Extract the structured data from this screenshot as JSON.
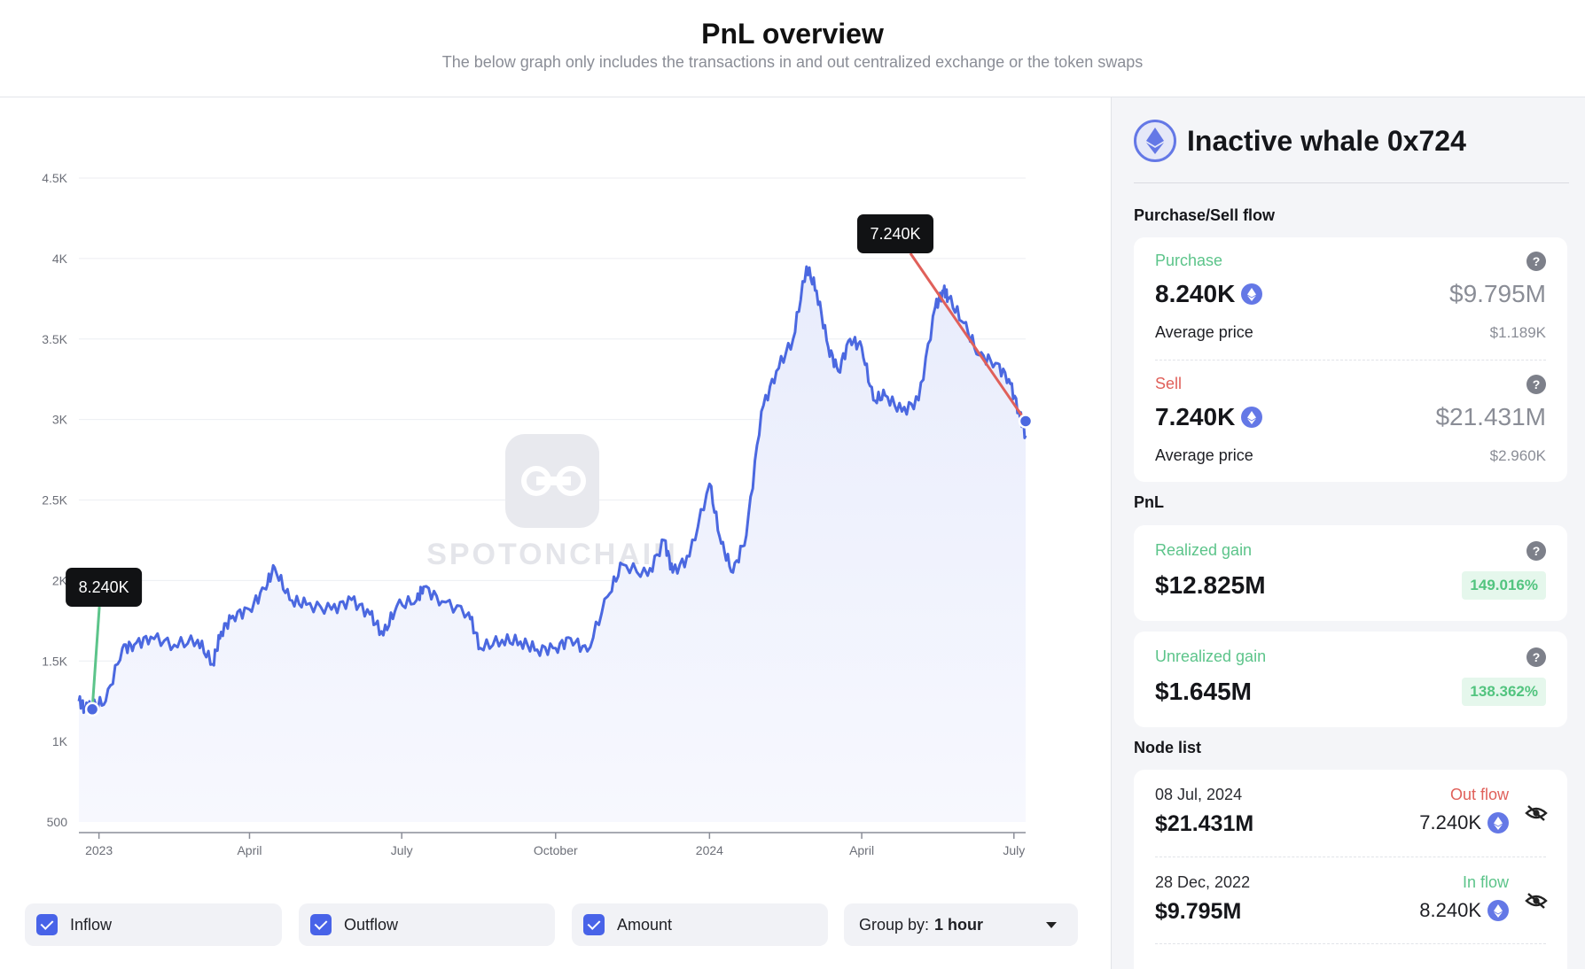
{
  "header": {
    "title": "PnL overview",
    "subtitle": "The below graph only includes the transactions in and out centralized exchange or the token swaps"
  },
  "watermark": "SPOTONCHAIN",
  "chart_data": {
    "type": "area",
    "ylim": [
      500,
      4500
    ],
    "y_ticks": [
      500,
      1000,
      1500,
      2000,
      2500,
      3000,
      3500,
      4000,
      4500
    ],
    "y_tick_labels": [
      "500",
      "1K",
      "1.5K",
      "2K",
      "2.5K",
      "3K",
      "3.5K",
      "4K",
      "4.5K"
    ],
    "x_range": [
      "2022-12-20",
      "2024-07-08"
    ],
    "x_ticks": [
      "2023-01-01",
      "2023-04-01",
      "2023-07-01",
      "2023-10-01",
      "2024-01-01",
      "2024-04-01",
      "2024-07-01"
    ],
    "x_tick_labels": [
      "2023",
      "April",
      "July",
      "October",
      "2024",
      "April",
      "July"
    ],
    "grid": true,
    "series": [
      {
        "color": "#4b68e0",
        "x": [
          "2022-12-20",
          "2022-12-24",
          "2022-12-28",
          "2023-01-05",
          "2023-01-15",
          "2023-01-22",
          "2023-02-01",
          "2023-02-15",
          "2023-03-01",
          "2023-03-10",
          "2023-03-15",
          "2023-03-22",
          "2023-04-01",
          "2023-04-10",
          "2023-04-16",
          "2023-04-25",
          "2023-05-05",
          "2023-05-20",
          "2023-06-01",
          "2023-06-12",
          "2023-06-20",
          "2023-06-28",
          "2023-07-10",
          "2023-07-14",
          "2023-07-25",
          "2023-08-10",
          "2023-08-17",
          "2023-08-30",
          "2023-09-10",
          "2023-09-20",
          "2023-10-01",
          "2023-10-10",
          "2023-10-20",
          "2023-11-01",
          "2023-11-10",
          "2023-11-25",
          "2023-12-05",
          "2023-12-10",
          "2023-12-20",
          "2024-01-01",
          "2024-01-08",
          "2024-01-15",
          "2024-01-23",
          "2024-02-01",
          "2024-02-10",
          "2024-02-20",
          "2024-02-28",
          "2024-03-05",
          "2024-03-12",
          "2024-03-18",
          "2024-03-25",
          "2024-04-01",
          "2024-04-08",
          "2024-04-15",
          "2024-04-25",
          "2024-05-05",
          "2024-05-15",
          "2024-05-20",
          "2024-05-23",
          "2024-06-01",
          "2024-06-10",
          "2024-06-20",
          "2024-06-28",
          "2024-07-04",
          "2024-07-08"
        ],
        "values": [
          1250,
          1200,
          1220,
          1250,
          1580,
          1600,
          1650,
          1600,
          1630,
          1480,
          1680,
          1780,
          1820,
          1950,
          2080,
          1880,
          1850,
          1820,
          1880,
          1790,
          1660,
          1840,
          1880,
          1960,
          1870,
          1800,
          1580,
          1630,
          1620,
          1570,
          1580,
          1640,
          1560,
          1900,
          2100,
          2030,
          2250,
          2050,
          2150,
          2600,
          2230,
          2050,
          2280,
          3050,
          3300,
          3500,
          3950,
          3800,
          3450,
          3300,
          3500,
          3450,
          3120,
          3150,
          3050,
          3120,
          3700,
          3800,
          3750,
          3600,
          3400,
          3350,
          3250,
          3050,
          2900
        ]
      }
    ],
    "annotations": [
      {
        "label": "8.240K",
        "x": "2022-12-28",
        "y": 1200,
        "type": "inflow",
        "color": "#5cc48a"
      },
      {
        "label": "7.240K",
        "x": "2024-07-08",
        "y": 2990,
        "type": "outflow",
        "color": "#e0605a"
      }
    ]
  },
  "controls": {
    "inflow_label": "Inflow",
    "outflow_label": "Outflow",
    "amount_label": "Amount",
    "group_label": "Group by:",
    "group_value": "1 hour"
  },
  "sidebar": {
    "title": "Inactive whale 0x724",
    "flow_section": "Purchase/Sell flow",
    "purchase": {
      "label": "Purchase",
      "amount": "8.240K",
      "usd": "$9.795M",
      "avg_label": "Average price",
      "avg_value": "$1.189K"
    },
    "sell": {
      "label": "Sell",
      "amount": "7.240K",
      "usd": "$21.431M",
      "avg_label": "Average price",
      "avg_value": "$2.960K"
    },
    "pnl_section": "PnL",
    "realized": {
      "label": "Realized gain",
      "value": "$12.825M",
      "pct": "149.016%"
    },
    "unrealized": {
      "label": "Unrealized gain",
      "value": "$1.645M",
      "pct": "138.362%"
    },
    "node_section": "Node list",
    "nodes": [
      {
        "date": "08 Jul, 2024",
        "usd": "$21.431M",
        "flow": "Out flow",
        "amount": "7.240K"
      },
      {
        "date": "28 Dec, 2022",
        "usd": "$9.795M",
        "flow": "In flow",
        "amount": "8.240K"
      }
    ],
    "colors": {
      "inflow": "#5cc48a",
      "outflow": "#e0605a",
      "accent": "#4b68e0"
    }
  }
}
